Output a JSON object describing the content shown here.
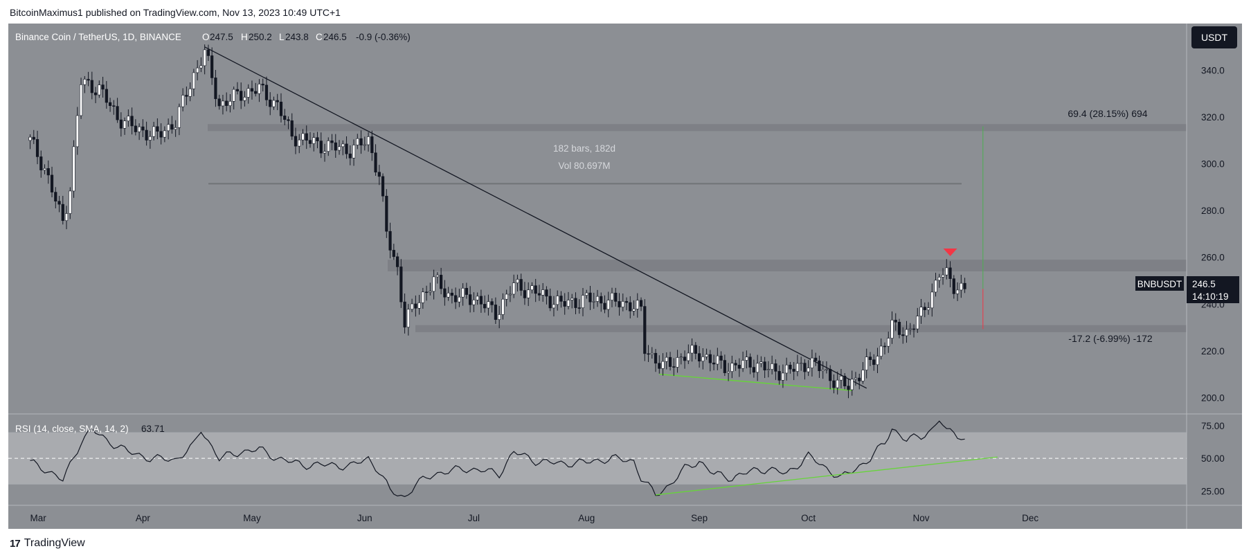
{
  "header": {
    "published": "BitcoinMaximus1 published on TradingView.com, Nov 13, 2023 10:49 UTC+1"
  },
  "legend": {
    "symbol": "Binance Coin / TetherUS, 1D, BINANCE",
    "o_label": "O",
    "o_value": "247.5",
    "h_label": "H",
    "h_value": "250.2",
    "l_label": "L",
    "l_value": "243.8",
    "c_label": "C",
    "c_value": "246.5",
    "change": "-0.9 (-0.36%)"
  },
  "currency_button": "USDT",
  "price_tag": {
    "symbol": "BNBUSDT",
    "price": "246.5",
    "countdown": "14:10:19"
  },
  "annotations": {
    "up_measure": "69.4 (28.15%) 694",
    "down_measure": "-17.2 (-6.99%) -172",
    "range_bars": "182 bars, 182d",
    "range_vol": "Vol 80.697M"
  },
  "rsi_legend": {
    "label": "RSI (14, close, SMA, 14, 2)",
    "value": "63.71"
  },
  "footer": {
    "brand": "TradingView"
  },
  "colors": {
    "background": "#8c8f94",
    "bull": "#ffffff",
    "bear": "#131722",
    "trendline": "#131722",
    "divergence": "#67d43a",
    "marker": "#f23645",
    "zone": "#7b7e84",
    "rsi_band": "#a9abaf"
  },
  "chart_data": [
    {
      "type": "candlestick",
      "symbol": "BNBUSDT",
      "ylim": [
        193,
        360
      ],
      "y_ticks": [
        "340.0",
        "320.0",
        "300.0",
        "280.0",
        "260.0",
        "240.0",
        "220.0",
        "200.0"
      ],
      "x_ticks": [
        "Mar",
        "Apr",
        "May",
        "Jun",
        "Jul",
        "Aug",
        "Sep",
        "Oct",
        "Nov",
        "Dec"
      ],
      "close_path": [
        [
          "Mar",
          310
        ],
        [
          "Mar 5",
          298
        ],
        [
          "Mar 10",
          275
        ],
        [
          "Mar 12",
          290
        ],
        [
          "Mar 15",
          335
        ],
        [
          "Mar 20",
          332
        ],
        [
          "Mar 25",
          320
        ],
        [
          "Mar 30",
          315
        ],
        [
          "Apr 5",
          312
        ],
        [
          "Apr 10",
          318
        ],
        [
          "Apr 15",
          338
        ],
        [
          "Apr 18",
          348
        ],
        [
          "Apr 22",
          325
        ],
        [
          "Apr 28",
          330
        ],
        [
          "May 3",
          332
        ],
        [
          "May 8",
          325
        ],
        [
          "May 12",
          312
        ],
        [
          "May 20",
          308
        ],
        [
          "May 28",
          306
        ],
        [
          "Jun 2",
          310
        ],
        [
          "Jun 5",
          295
        ],
        [
          "Jun 7",
          270
        ],
        [
          "Jun 10",
          255
        ],
        [
          "Jun 12",
          232
        ],
        [
          "Jun 15",
          240
        ],
        [
          "Jun 20",
          250
        ],
        [
          "Jun 25",
          243
        ],
        [
          "Jul 1",
          243
        ],
        [
          "Jul 7",
          236
        ],
        [
          "Jul 12",
          248
        ],
        [
          "Jul 18",
          245
        ],
        [
          "Jul 25",
          240
        ],
        [
          "Aug 1",
          242
        ],
        [
          "Aug 8",
          241
        ],
        [
          "Aug 13",
          240
        ],
        [
          "Aug 16",
          237
        ],
        [
          "Aug 17",
          221
        ],
        [
          "Aug 22",
          213
        ],
        [
          "Aug 28",
          218
        ],
        [
          "Sep 1",
          219
        ],
        [
          "Sep 5",
          215
        ],
        [
          "Sep 10",
          213
        ],
        [
          "Sep 15",
          215
        ],
        [
          "Sep 20",
          212
        ],
        [
          "Sep 25",
          211
        ],
        [
          "Oct 1",
          215
        ],
        [
          "Oct 5",
          212
        ],
        [
          "Oct 9",
          206
        ],
        [
          "Oct 12",
          205
        ],
        [
          "Oct 16",
          212
        ],
        [
          "Oct 20",
          218
        ],
        [
          "Oct 24",
          230
        ],
        [
          "Oct 28",
          228
        ],
        [
          "Nov 1",
          235
        ],
        [
          "Nov 4",
          245
        ],
        [
          "Nov 6",
          253
        ],
        [
          "Nov 8",
          252
        ],
        [
          "Nov 10",
          248
        ],
        [
          "Nov 13",
          246.5
        ]
      ],
      "zones": [
        [
          314,
          317
        ],
        [
          254,
          259
        ],
        [
          228,
          231
        ]
      ],
      "horizontal_line": 291.5,
      "trendline": [
        [
          "Apr 18",
          350
        ],
        [
          "Oct 17",
          204
        ]
      ],
      "divergence_line": [
        [
          "Aug 21",
          210
        ],
        [
          "Oct 13",
          203
        ]
      ],
      "marker": [
        "Nov 9",
        262
      ],
      "measure_up": {
        "from": 246.5,
        "to": 316,
        "date": "Nov 18"
      },
      "measure_down": {
        "from": 246.5,
        "to": 229.3,
        "date": "Nov 18"
      }
    },
    {
      "type": "line",
      "name": "RSI",
      "ylim": [
        14,
        83
      ],
      "y_ticks": [
        "75.00",
        "50.00",
        "25.00"
      ],
      "band": [
        30,
        70
      ],
      "midline": 50,
      "series_points": [
        [
          "Mar",
          47
        ],
        [
          "Mar 5",
          42
        ],
        [
          "Mar 10",
          33
        ],
        [
          "Mar 15",
          63
        ],
        [
          "Mar 18",
          72
        ],
        [
          "Mar 22",
          64
        ],
        [
          "Mar 28",
          55
        ],
        [
          "Apr 3",
          50
        ],
        [
          "Apr 10",
          49
        ],
        [
          "Apr 15",
          60
        ],
        [
          "Apr 17",
          72
        ],
        [
          "Apr 22",
          50
        ],
        [
          "Apr 28",
          55
        ],
        [
          "May 3",
          57
        ],
        [
          "May 8",
          50
        ],
        [
          "May 15",
          45
        ],
        [
          "May 22",
          45
        ],
        [
          "May 28",
          44
        ],
        [
          "Jun 2",
          50
        ],
        [
          "Jun 5",
          40
        ],
        [
          "Jun 8",
          25
        ],
        [
          "Jun 12",
          20
        ],
        [
          "Jun 15",
          30
        ],
        [
          "Jun 20",
          38
        ],
        [
          "Jun 28",
          42
        ],
        [
          "Jul 3",
          41
        ],
        [
          "Jul 8",
          38
        ],
        [
          "Jul 12",
          55
        ],
        [
          "Jul 18",
          48
        ],
        [
          "Jul 25",
          46
        ],
        [
          "Aug 1",
          47
        ],
        [
          "Aug 8",
          50
        ],
        [
          "Aug 14",
          48
        ],
        [
          "Aug 16",
          35
        ],
        [
          "Aug 20",
          22
        ],
        [
          "Aug 24",
          30
        ],
        [
          "Aug 28",
          42
        ],
        [
          "Sep 1",
          48
        ],
        [
          "Sep 5",
          38
        ],
        [
          "Sep 10",
          35
        ],
        [
          "Sep 15",
          40
        ],
        [
          "Sep 20",
          42
        ],
        [
          "Sep 25",
          38
        ],
        [
          "Oct 1",
          52
        ],
        [
          "Oct 5",
          44
        ],
        [
          "Oct 10",
          35
        ],
        [
          "Oct 14",
          42
        ],
        [
          "Oct 18",
          50
        ],
        [
          "Oct 22",
          62
        ],
        [
          "Oct 24",
          73
        ],
        [
          "Oct 28",
          64
        ],
        [
          "Nov 1",
          67
        ],
        [
          "Nov 4",
          72
        ],
        [
          "Nov 6",
          80
        ],
        [
          "Nov 8",
          70
        ],
        [
          "Nov 10",
          71
        ],
        [
          "Nov 13",
          63.71
        ]
      ],
      "divergence_line": [
        [
          "Aug 20",
          22
        ],
        [
          "Nov 22",
          51
        ]
      ]
    }
  ]
}
